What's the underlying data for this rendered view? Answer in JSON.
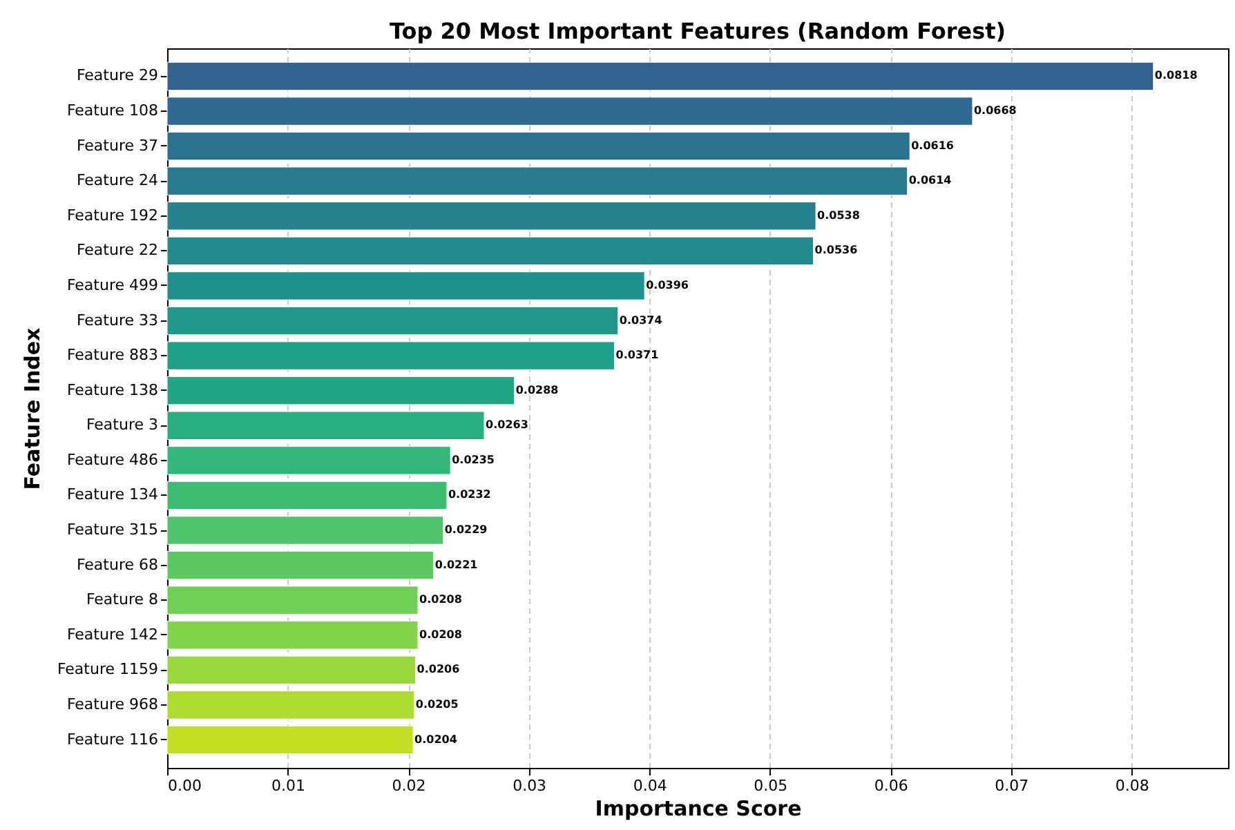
{
  "chart_data": {
    "type": "bar",
    "orientation": "horizontal",
    "title": "Top 20 Most Important Features (Random Forest)",
    "xlabel": "Importance Score",
    "ylabel": "Feature Index",
    "categories": [
      "Feature 29",
      "Feature 108",
      "Feature 37",
      "Feature 24",
      "Feature 192",
      "Feature 22",
      "Feature 499",
      "Feature 33",
      "Feature 883",
      "Feature 138",
      "Feature 3",
      "Feature 486",
      "Feature 134",
      "Feature 315",
      "Feature 68",
      "Feature 8",
      "Feature 142",
      "Feature 1159",
      "Feature 968",
      "Feature 116"
    ],
    "values": [
      0.0818,
      0.0668,
      0.0616,
      0.0614,
      0.0538,
      0.0536,
      0.0396,
      0.0374,
      0.0371,
      0.0288,
      0.0263,
      0.0235,
      0.0232,
      0.0229,
      0.0221,
      0.0208,
      0.0208,
      0.0206,
      0.0205,
      0.0204
    ],
    "colors": [
      "#33638d",
      "#2f6b8e",
      "#2c728e",
      "#297a8e",
      "#26828e",
      "#238a8d",
      "#21918c",
      "#1f998a",
      "#1fa088",
      "#22a785",
      "#28ae80",
      "#32b67a",
      "#3fbc73",
      "#4ec36b",
      "#5ec962",
      "#70cf57",
      "#84d44b",
      "#98d83e",
      "#addc30",
      "#c2df23"
    ],
    "xlim": [
      0,
      0.088
    ],
    "xticks": [
      {
        "value": 0,
        "label": "0.00"
      },
      {
        "value": 0.01,
        "label": "0.01"
      },
      {
        "value": 0.02,
        "label": "0.02"
      },
      {
        "value": 0.03,
        "label": "0.03"
      },
      {
        "value": 0.04,
        "label": "0.04"
      },
      {
        "value": 0.05,
        "label": "0.05"
      },
      {
        "value": 0.06,
        "label": "0.06"
      },
      {
        "value": 0.07,
        "label": "0.07"
      },
      {
        "value": 0.08,
        "label": "0.08"
      }
    ],
    "grid": "x",
    "data_labels": true
  }
}
